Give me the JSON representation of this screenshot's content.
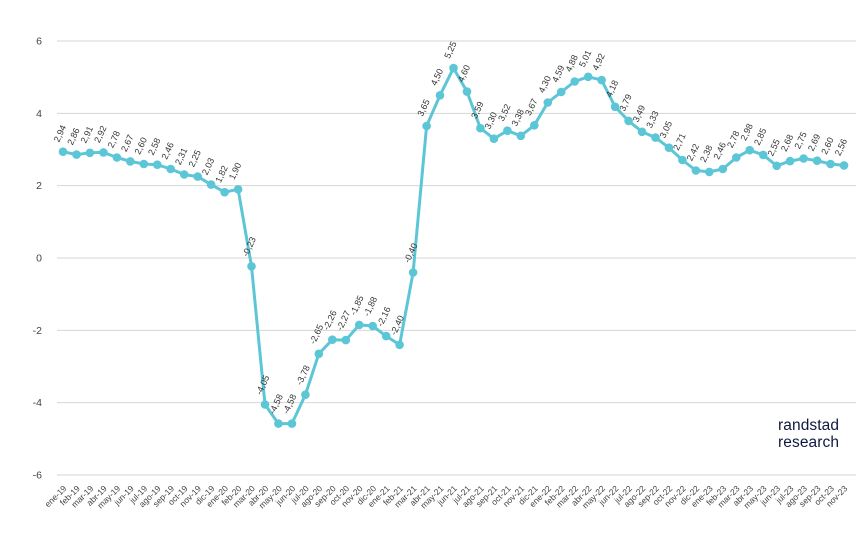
{
  "brand": {
    "line1": "randstad",
    "line2": "research",
    "color": "#0f1941"
  },
  "chart_data": {
    "type": "line",
    "title": "",
    "xlabel": "",
    "ylabel": "",
    "x": [
      "ene-19",
      "feb-19",
      "mar-19",
      "abr-19",
      "may-19",
      "jun-19",
      "jul-19",
      "ago-19",
      "sep-19",
      "oct-19",
      "nov-19",
      "dic-19",
      "ene-20",
      "feb-20",
      "mar-20",
      "abr-20",
      "may-20",
      "jun-20",
      "jul-20",
      "ago-20",
      "sep-20",
      "oct-20",
      "nov-20",
      "dic-20",
      "ene-21",
      "feb-21",
      "mar-21",
      "abr-21",
      "may-21",
      "jun-21",
      "jul-21",
      "ago-21",
      "sep-21",
      "oct-21",
      "nov-21",
      "dic-21",
      "ene-22",
      "feb-22",
      "mar-22",
      "abr-22",
      "may-22",
      "jun-22",
      "jul-22",
      "ago-22",
      "sep-22",
      "oct-22",
      "nov-22",
      "dic-22",
      "ene-23",
      "feb-23",
      "mar-23",
      "abr-23",
      "may-23",
      "jun-23",
      "jul-23",
      "ago-23",
      "sep-23",
      "oct-23",
      "nov-23"
    ],
    "values": [
      2.94,
      2.86,
      2.91,
      2.92,
      2.78,
      2.67,
      2.6,
      2.58,
      2.46,
      2.31,
      2.25,
      2.03,
      1.82,
      1.9,
      -0.23,
      -4.05,
      -4.58,
      -4.58,
      -3.78,
      -2.65,
      -2.26,
      -2.27,
      -1.85,
      -1.88,
      -2.16,
      -2.4,
      -0.4,
      3.65,
      4.5,
      5.25,
      4.6,
      3.59,
      3.3,
      3.52,
      3.38,
      3.67,
      4.3,
      4.59,
      4.88,
      5.01,
      4.92,
      4.18,
      3.79,
      3.49,
      3.33,
      3.05,
      2.71,
      2.42,
      2.38,
      2.46,
      2.78,
      2.98,
      2.85,
      2.55,
      2.68,
      2.75,
      2.69,
      2.6,
      2.56
    ],
    "point_labels": [
      "2,94",
      "2,86",
      "2,91",
      "2,92",
      "2,78",
      "2,67",
      "2,60",
      "2,58",
      "2,46",
      "2,31",
      "2,25",
      "2,03",
      "1,82",
      "1,90",
      "-0,23",
      "-4,05",
      "-4,58",
      "-4,58",
      "-3,78",
      "-2,65",
      "-2,26",
      "-2,27",
      "-1,85",
      "-1,88",
      "-2,16",
      "-2,40",
      "-0,40",
      "3,65",
      "4,50",
      "5,25",
      "4,60",
      "3,59",
      "3,30",
      "3,52",
      "3,38",
      "3,67",
      "4,30",
      "4,59",
      "4,88",
      "5,01",
      "4,92",
      "4,18",
      "3,79",
      "3,49",
      "3,33",
      "3,05",
      "2,71",
      "2,42",
      "2,38",
      "2,46",
      "2,78",
      "2,98",
      "2,85",
      "2,55",
      "2,68",
      "2,75",
      "2,69",
      "2,60",
      "2,56"
    ],
    "ylim": [
      -6,
      6
    ],
    "yticks": [
      6,
      4,
      2,
      0,
      -2,
      -4,
      -6
    ],
    "ytick_labels": [
      "6",
      "4",
      "2",
      "0",
      "-2",
      "-4",
      "-6"
    ],
    "grid": true,
    "legend": "none",
    "line_color": "#5cc6d7",
    "marker": "circle",
    "value_label_color": "#333333",
    "axis_label_color": "#444444",
    "gridline_color": "#d6d6d6"
  }
}
